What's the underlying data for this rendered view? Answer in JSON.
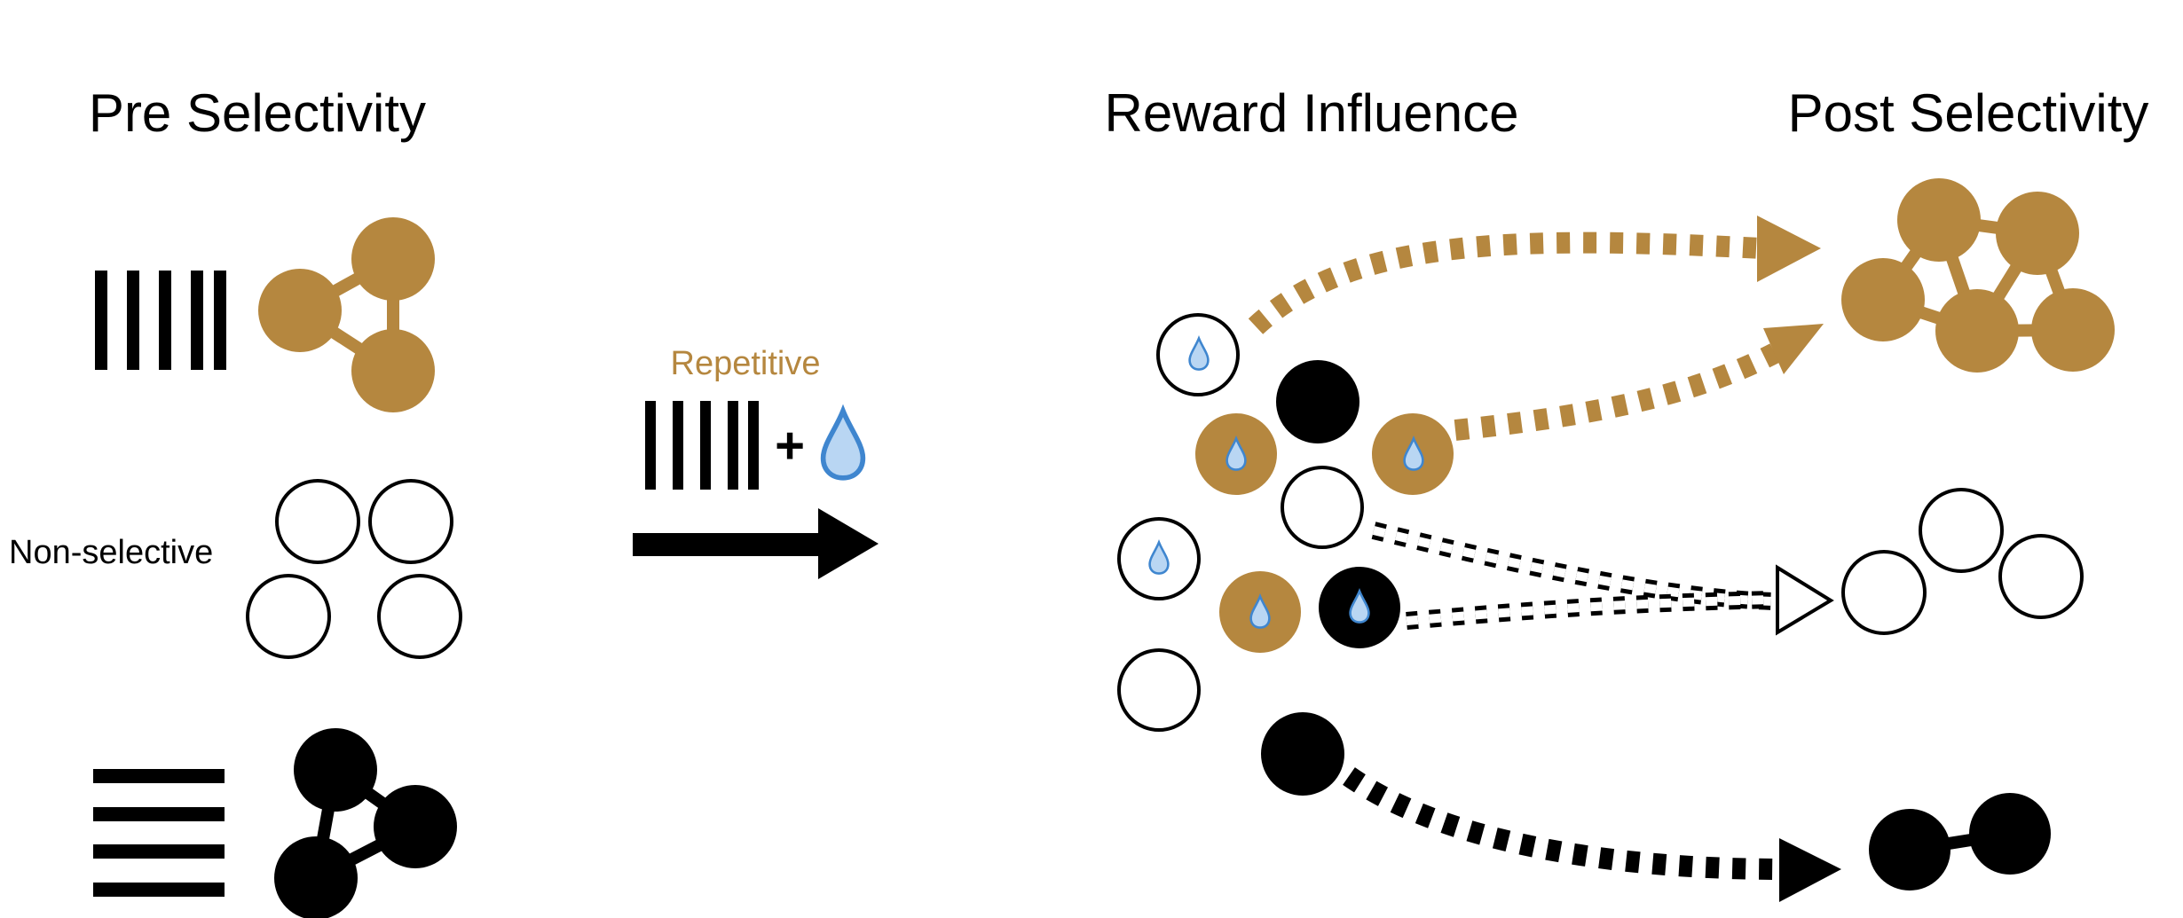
{
  "headings": {
    "pre": "Pre Selectivity",
    "reward": "Reward Influence",
    "post": "Post Selectivity"
  },
  "labels": {
    "non_selective": "Non-selective",
    "repetitive": "Repetitive",
    "plus": "+"
  },
  "colors": {
    "gold": "#b5873f",
    "black": "#000000",
    "drop_fill": "#b9d6f3",
    "drop_stroke": "#3f86cf",
    "white": "#ffffff"
  },
  "icons": {
    "vertical_grating": "vertical-grating-icon",
    "horizontal_grating": "horizontal-grating-icon",
    "water_drop": "water-drop-icon",
    "process_arrow": "right-arrow-icon"
  }
}
